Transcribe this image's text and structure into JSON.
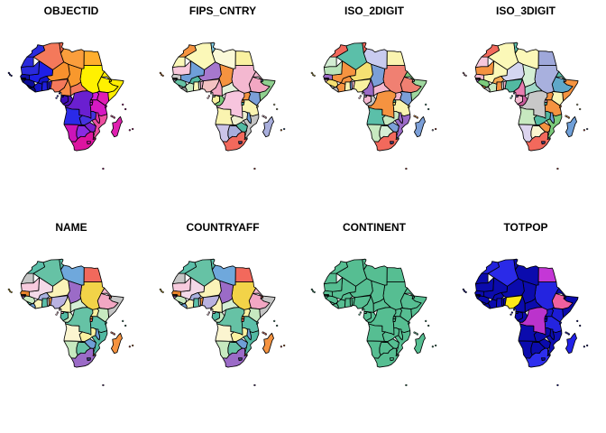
{
  "figure": {
    "background": "#ffffff",
    "border_color": "#000000",
    "title_color": "#000000"
  },
  "panels": [
    {
      "title": "OBJECTID",
      "colors": {
        "DEFAULT": "#2A2AD9",
        "MAR": "#2B2BDD",
        "ESH": "#2B2BDD",
        "DZA": "#F4795B",
        "TUN": "#F0694F",
        "LBY": "#FB9E3C",
        "EGY": "#FFAE2E",
        "MRT": "#2B2BDD",
        "MLI": "#1E1EE6",
        "SEN": "#0F0FA8",
        "GMB": "#0B0B9A",
        "GNB": "#0A0A85",
        "GIN": "#0D0D99",
        "SLE": "#07075F",
        "LBR": "#0A0A78",
        "CIV": "#1414C8",
        "GHA": "#1E1EDC",
        "TGO": "#2314C8",
        "BEN": "#2B1ED0",
        "BFA": "#1414C8",
        "NER": "#F8912D",
        "TCD": "#F8982D",
        "SDN": "#FFF100",
        "ERI": "#FFF100",
        "DJI": "#FFEA00",
        "ETH": "#FFF100",
        "SOM": "#FFEE00",
        "NGA": "#F4795B",
        "CMR": "#F98B45",
        "CAF": "#F4795B",
        "GNQ": "#150DA8",
        "GAB": "#3C0EB4",
        "COG": "#4A10B4",
        "COD": "#6A1FD0",
        "UGA": "#D61ED6",
        "KEN": "#E01EB4",
        "RWA": "#C81EC8",
        "BDI": "#BE1ECD",
        "TZA": "#D619C3",
        "AGO": "#2A2AE8",
        "ZMB": "#4633E0",
        "MWI": "#E835A5",
        "MOZ": "#ED4FA0",
        "ZWE": "#7A1FD0",
        "BWA": "#8A2BE2",
        "NAM": "#CC14B8",
        "ZAF": "#DC14A0",
        "LSO": "#D014A8",
        "SWZ": "#E24FA0",
        "MDG": "#E020B0",
        "CPV": "#0B0B9A",
        "STP": "#2A2AD9",
        "COM": "#ED4FA0",
        "SYC": "#E020B0",
        "MUS": "#E8359F",
        "REU": "#E8359F"
      }
    },
    {
      "title": "FIPS_CNTRY",
      "colors": {
        "DEFAULT": "#DDDDDD",
        "MAR": "#F59340",
        "ESH": "#FBF8B8",
        "DZA": "#FBF8B8",
        "TUN": "#7EC8E3",
        "LBY": "#FAF9D8",
        "EGY": "#F9F1A0",
        "MRT": "#F8C8DC",
        "MLI": "#6F9FD8",
        "SEN": "#C8C8C8",
        "GMB": "#B0B0B0",
        "GNB": "#9090A8",
        "GIN": "#66C2A5",
        "SLE": "#B8B8B8",
        "LBR": "#909090",
        "CIV": "#C7E9C0",
        "GHA": "#FBF8B8",
        "TGO": "#D8D8D8",
        "BEN": "#F4B8D0",
        "BFA": "#52B9A2",
        "NER": "#A678CE",
        "TCD": "#F59340",
        "SDN": "#F4B8D0",
        "ERI": "#F4B8D0",
        "DJI": "#6F9FD8",
        "ETH": "#F2A7C3",
        "SOM": "#8FD08F",
        "NGA": "#F4C2C2",
        "CMR": "#F2A7C3",
        "CAF": "#E4F2DC",
        "GNQ": "#D0D0D0",
        "GAB": "#F9F1A0",
        "COG": "#7CCB7C",
        "COD": "#F7C5DE",
        "UGA": "#F59340",
        "KEN": "#7B9FD8",
        "RWA": "#F59340",
        "BDI": "#52B9A2",
        "TZA": "#FAF4B0",
        "AGO": "#FAF4B0",
        "ZMB": "#EFEFD0",
        "MWI": "#6F9FD8",
        "MOZ": "#C4C4C4",
        "ZWE": "#52B9A2",
        "BWA": "#A8AEDC",
        "NAM": "#CCC4E8",
        "ZAF": "#F2695C",
        "LSO": "#404078",
        "SWZ": "#52B9A2",
        "MDG": "#A8AEDC",
        "CPV": "#F59340",
        "STP": "#F2A7C3",
        "COM": "#F4B8D0",
        "SYC": "#FBF8B8",
        "MUS": "#6F9FD8",
        "REU": "#F59340"
      }
    },
    {
      "title": "ISO_2DIGIT",
      "colors": {
        "DEFAULT": "#DDDDDD",
        "MAR": "#F2695C",
        "ESH": "#D4EED4",
        "DZA": "#5BBFA9",
        "TUN": "#F2695C",
        "LBY": "#C9CBF0",
        "EGY": "#FAF4B0",
        "MRT": "#B8E3B8",
        "MLI": "#F59340",
        "SEN": "#9B6BC7",
        "GMB": "#D0D0D0",
        "GNB": "#F4B8D0",
        "GIN": "#F5E072",
        "SLE": "#D8D8C8",
        "LBR": "#B8B8B8",
        "CIV": "#F59340",
        "GHA": "#FAF4B0",
        "TGO": "#7B9FD8",
        "BEN": "#F4B8D0",
        "BFA": "#F59340",
        "NER": "#F5E072",
        "TCD": "#7B9FD8",
        "SDN": "#F08072",
        "ERI": "#7CCB7C",
        "DJI": "#F4B8D0",
        "ETH": "#F08072",
        "SOM": "#9FD89F",
        "NGA": "#F9F1A0",
        "CMR": "#9B6BC7",
        "CAF": "#F4B8D0",
        "GNQ": "#C9CBF0",
        "GAB": "#F4B8D0",
        "COG": "#C0C0C0",
        "COD": "#F59340",
        "UGA": "#F4B8D0",
        "KEN": "#7B9FD8",
        "RWA": "#5BBFA9",
        "BDI": "#F5E072",
        "TZA": "#FAF4B0",
        "AGO": "#5BBFA9",
        "ZMB": "#C7E9C0",
        "MWI": "#9B6BC7",
        "MOZ": "#9B6BC7",
        "ZWE": "#7B9FD8",
        "BWA": "#D4EED4",
        "NAM": "#C7E9C0",
        "ZAF": "#F2695C",
        "LSO": "#404078",
        "SWZ": "#5BBFA9",
        "MDG": "#7B9FD8",
        "CPV": "#F5E072",
        "STP": "#F4B8D0",
        "COM": "#F59340",
        "SYC": "#5BBFA9",
        "MUS": "#F2695C",
        "REU": "#C9CBF0"
      }
    },
    {
      "title": "ISO_3DIGIT",
      "colors": {
        "DEFAULT": "#DDDDDD",
        "MAR": "#F2695C",
        "ESH": "#F8C8DC",
        "DZA": "#FBF8B8",
        "TUN": "#5BBFA9",
        "LBY": "#FBF8B8",
        "EGY": "#9FA8DA",
        "MRT": "#F59340",
        "MLI": "#FBF8B8",
        "SEN": "#F4B8D0",
        "GMB": "#B0B0B0",
        "GNB": "#9B6BC7",
        "GIN": "#7CCB7C",
        "SLE": "#F59340",
        "LBR": "#C0C0C0",
        "CIV": "#C7E9C0",
        "GHA": "#F59340",
        "TGO": "#D8D8D8",
        "BEN": "#F4B8D0",
        "BFA": "#F5A850",
        "NER": "#D4D6F0",
        "TCD": "#D4EED4",
        "SDN": "#A8B0DE",
        "ERI": "#5BBFA9",
        "DJI": "#F4B8D0",
        "ETH": "#5FA8C9",
        "SOM": "#F59340",
        "NGA": "#52B9A2",
        "CMR": "#E87DB0",
        "CAF": "#9FD8C8",
        "GNQ": "#9B6BC7",
        "GAB": "#F4B8D0",
        "COG": "#C75B9B",
        "COD": "#C8C8C8",
        "UGA": "#F59340",
        "KEN": "#FBF8B8",
        "RWA": "#F4B8D0",
        "BDI": "#5BBFA9",
        "TZA": "#F59340",
        "AGO": "#C7E9C0",
        "ZMB": "#52B9A2",
        "MWI": "#6F9FD8",
        "MOZ": "#7CCB7C",
        "ZWE": "#F59340",
        "BWA": "#FBF5D0",
        "NAM": "#DCD4EE",
        "ZAF": "#F2695C",
        "LSO": "#404078",
        "SWZ": "#5BBFA9",
        "MDG": "#6F9FD8",
        "CPV": "#F4B8D0",
        "STP": "#5BBFA9",
        "COM": "#F59340",
        "SYC": "#FBF8B8",
        "MUS": "#9FA8DA",
        "REU": "#F2695C"
      }
    },
    {
      "title": "NAME",
      "colors": {
        "DEFAULT": "#DDDDDD",
        "MAR": "#5BBFA9",
        "ESH": "#C6C6C6",
        "DZA": "#66C2A5",
        "TUN": "#5BBFA9",
        "LBY": "#6FA8DC",
        "EGY": "#F2695C",
        "MRT": "#F8CBDE",
        "MLI": "#F3D9E8",
        "SEN": "#E8842A",
        "GMB": "#B09048",
        "GNB": "#9B6BC7",
        "GIN": "#C7E9C0",
        "SLE": "#5BBFA9",
        "LBR": "#6F9FD8",
        "CIV": "#FBF3B8",
        "GHA": "#5BBFA9",
        "TGO": "#C8C8C8",
        "BEN": "#F59340",
        "BFA": "#A8B0DE",
        "NER": "#FBF3B8",
        "TCD": "#9B6BC7",
        "SDN": "#F2D348",
        "ERI": "#F4B8D0",
        "DJI": "#F2695C",
        "ETH": "#F2A7C3",
        "SOM": "#C6C6C6",
        "NGA": "#B9B2E0",
        "CMR": "#FBF3B8",
        "CAF": "#D4EED4",
        "GNQ": "#F4B8D0",
        "GAB": "#52B9A2",
        "COG": "#C7E9C0",
        "COD": "#66C2A5",
        "UGA": "#F9F1A0",
        "KEN": "#C7E9C0",
        "RWA": "#F59340",
        "BDI": "#F2695C",
        "TZA": "#5BBFA9",
        "AGO": "#FBF5D0",
        "ZMB": "#F9F1A0",
        "MWI": "#6F9FD8",
        "MOZ": "#52B9A2",
        "ZWE": "#6F9FD8",
        "BWA": "#66C2A5",
        "NAM": "#C7E9C0",
        "ZAF": "#9B6BC7",
        "LSO": "#404078",
        "SWZ": "#F59340",
        "MDG": "#F59340",
        "CPV": "#F2D348",
        "STP": "#F4B8D0",
        "COM": "#F2695C",
        "SYC": "#66C2A5",
        "MUS": "#F59340",
        "REU": "#F2695C"
      }
    },
    {
      "title": "COUNTRYAFF",
      "colors": {
        "DEFAULT": "#DDDDDD",
        "MAR": "#5BBFA9",
        "ESH": "#C6C6C6",
        "DZA": "#66C2A5",
        "TUN": "#5BBFA9",
        "LBY": "#6FA8DC",
        "EGY": "#F2695C",
        "MRT": "#F8CBDE",
        "MLI": "#F3D9E8",
        "SEN": "#E8842A",
        "GMB": "#B09048",
        "GNB": "#9B6BC7",
        "GIN": "#C7E9C0",
        "SLE": "#5BBFA9",
        "LBR": "#6F9FD8",
        "CIV": "#FBF3B8",
        "GHA": "#5BBFA9",
        "TGO": "#C8C8C8",
        "BEN": "#F59340",
        "BFA": "#A8B0DE",
        "NER": "#FBF3B8",
        "TCD": "#9B6BC7",
        "SDN": "#F2D348",
        "ERI": "#F4B8D0",
        "DJI": "#F2695C",
        "ETH": "#F2A7C3",
        "SOM": "#C6C6C6",
        "NGA": "#B9B2E0",
        "CMR": "#FBF3B8",
        "CAF": "#D4EED4",
        "GNQ": "#F4B8D0",
        "GAB": "#52B9A2",
        "COG": "#C7E9C0",
        "COD": "#66C2A5",
        "UGA": "#F9F1A0",
        "KEN": "#C7E9C0",
        "RWA": "#F59340",
        "BDI": "#F2695C",
        "TZA": "#5BBFA9",
        "AGO": "#FBF5D0",
        "ZMB": "#F9F1A0",
        "MWI": "#6F9FD8",
        "MOZ": "#52B9A2",
        "ZWE": "#6F9FD8",
        "BWA": "#66C2A5",
        "NAM": "#C7E9C0",
        "ZAF": "#9B6BC7",
        "LSO": "#404078",
        "SWZ": "#F59340",
        "MDG": "#F59340",
        "CPV": "#F2D348",
        "STP": "#F4B8D0",
        "COM": "#F2695C",
        "SYC": "#66C2A5",
        "MUS": "#F59340",
        "REU": "#F2695C"
      }
    },
    {
      "title": "CONTINENT",
      "colors": {
        "DEFAULT": "#56BE92"
      }
    },
    {
      "title": "TOTPOP",
      "colors": {
        "DEFAULT": "#0B0BAD",
        "NGA": "#FFE81A",
        "EGY": "#C437D6",
        "ETH": "#F0609F",
        "COD": "#BB33CC",
        "DZA": "#2A2AE8",
        "MAR": "#2222DD",
        "ZAF": "#2E2EEE",
        "TZA": "#2424E0",
        "SDN": "#2424E0",
        "KEN": "#1C1CD6",
        "MDG": "#2222E8",
        "UGA": "#1515C8",
        "GHA": "#1212C0",
        "MOZ": "#0E0EB5"
      }
    }
  ]
}
